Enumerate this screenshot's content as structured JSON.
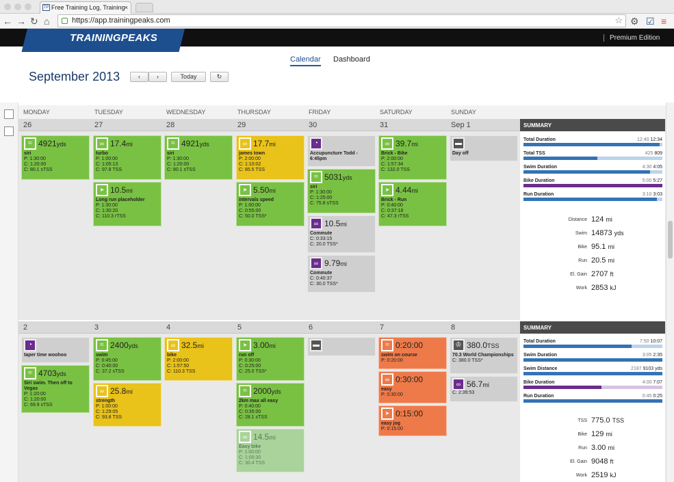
{
  "browser": {
    "tab_title": "Free Training Log, Training",
    "tab_close": "×",
    "url": "https://app.trainingpeaks.com",
    "favicon": "TP"
  },
  "brand": {
    "logo": "TRAININGPEAKS",
    "edition": "Premium Edition"
  },
  "nav": {
    "calendar": "Calendar",
    "dashboard": "Dashboard"
  },
  "header": {
    "month": "September",
    "year": "2013",
    "prev": "‹",
    "next": "›",
    "today": "Today",
    "refresh": "↻"
  },
  "days": [
    "MONDAY",
    "TUESDAY",
    "WEDNESDAY",
    "THURSDAY",
    "FRIDAY",
    "SATURDAY",
    "SUNDAY"
  ],
  "week1": {
    "dates": [
      "26",
      "27",
      "28",
      "29",
      "30",
      "31",
      "Sep 1"
    ],
    "cards": [
      {
        "v": "4921",
        "u": "yds",
        "t": "siri",
        "l": [
          "P: 1:30:00",
          "C: 1:20:00",
          "C: 80.1 sTSS"
        ]
      },
      {
        "v": "17.4",
        "u": "mi",
        "t": "turbo",
        "l": [
          "P: 1:00:00",
          "C: 1:05:13",
          "C: 97.8 TSS"
        ]
      },
      {
        "v": "10.5",
        "u": "mi",
        "t": "Long run placeholder",
        "l": [
          "P: 1:30:00",
          "C: 1:30:20",
          "C: 110.3 rTSS"
        ]
      },
      {
        "v": "4921",
        "u": "yds",
        "t": "siri",
        "l": [
          "P: 1:30:00",
          "C: 1:20:00",
          "C: 80.1 sTSS"
        ]
      },
      {
        "v": "17.7",
        "u": "mi",
        "t": "james town",
        "l": [
          "P: 2:00:00",
          "C: 1:10:02",
          "C: 85.5 TSS"
        ]
      },
      {
        "v": "5.50",
        "u": "mi",
        "t": "intervals speed",
        "l": [
          "P: 1:00:00",
          "C: 0:55:00",
          "C: 50.0 TSS*"
        ]
      },
      {
        "v": "",
        "u": "",
        "t": "Accupuncture Todd - 6:45pm",
        "l": []
      },
      {
        "v": "5031",
        "u": "yds",
        "t": "siri",
        "l": [
          "P: 1:30:00",
          "C: 1:25:00",
          "C: 75.8 sTSS"
        ]
      },
      {
        "v": "10.5",
        "u": "mi",
        "t": "Commute",
        "l": [
          "C: 0:33:15",
          "C: 20.0 TSS*"
        ]
      },
      {
        "v": "9.79",
        "u": "mi",
        "t": "Commute",
        "l": [
          "C: 0:40:37",
          "C: 30.0 TSS*"
        ]
      },
      {
        "v": "39.7",
        "u": "mi",
        "t": "Brick - Bike",
        "l": [
          "P: 2:00:00",
          "C: 1:57:34",
          "C: 132.0 TSS"
        ]
      },
      {
        "v": "4.44",
        "u": "mi",
        "t": "Brick - Run",
        "l": [
          "P: 0:40:00",
          "C: 0:37:18",
          "C: 47.3 rTSS"
        ]
      },
      {
        "v": "",
        "u": "",
        "t": "Day off",
        "l": []
      }
    ],
    "summary": {
      "title": "SUMMARY",
      "bars": [
        {
          "label": "Total Duration",
          "plan": "12:40",
          "actual": "12:34",
          "pct": 0.98
        },
        {
          "label": "Total TSS",
          "plan": "425",
          "actual": "809",
          "pct": 0.53
        },
        {
          "label": "Swim Duration",
          "plan": "4:30",
          "actual": "4:05",
          "pct": 0.91
        },
        {
          "label": "Bike Duration",
          "plan": "5:00",
          "actual": "5:27",
          "pct": 1.0
        },
        {
          "label": "Run Duration",
          "plan": "3:10",
          "actual": "3:03",
          "pct": 0.96
        }
      ],
      "stats": [
        {
          "k": "Distance",
          "v": "124",
          "u": "mi"
        },
        {
          "k": "Swim",
          "v": "14873",
          "u": "yds"
        },
        {
          "k": "Bike",
          "v": "95.1",
          "u": "mi"
        },
        {
          "k": "Run",
          "v": "20.5",
          "u": "mi"
        },
        {
          "k": "El. Gain",
          "v": "2707",
          "u": "ft"
        },
        {
          "k": "Work",
          "v": "2853",
          "u": "kJ"
        }
      ]
    }
  },
  "week2": {
    "dates": [
      "2",
      "3",
      "4",
      "5",
      "6",
      "7",
      "8"
    ],
    "cards": [
      {
        "v": "",
        "u": "",
        "t": "taper time woohoo",
        "l": []
      },
      {
        "v": "4703",
        "u": "yds",
        "t": "Siri swim. Then off to Vegas",
        "l": [
          "P: 1:20:00",
          "C: 1:20:00",
          "C: 69.9 sTSS"
        ]
      },
      {
        "v": "2400",
        "u": "yds",
        "t": "swim",
        "l": [
          "P: 0:45:00",
          "C: 0:40:00",
          "C: 37.2 sTSS"
        ]
      },
      {
        "v": "25.8",
        "u": "mi",
        "t": "strength",
        "l": [
          "P: 1:00:00",
          "C: 1:29:05",
          "C: 93.8 TSS"
        ]
      },
      {
        "v": "32.5",
        "u": "mi",
        "t": "bike",
        "l": [
          "P: 2:00:00",
          "C: 1:57:50",
          "C: 110.3 TSS"
        ]
      },
      {
        "v": "3.00",
        "u": "mi",
        "t": "run off",
        "l": [
          "P: 0:30:00",
          "C: 0:25:00",
          "C: 25.0 TSS*"
        ]
      },
      {
        "v": "2000",
        "u": "yds",
        "t": "2km max all easy",
        "l": [
          "P: 0:40:00",
          "C: 0:35:00",
          "C: 28.1 sTSS"
        ]
      },
      {
        "v": "14.5",
        "u": "mi",
        "t": "Easy bike",
        "l": [
          "P: 1:00:00",
          "C: 1:00:30",
          "C: 30.4 TSS"
        ]
      },
      {
        "v": "",
        "u": "",
        "t": "",
        "l": []
      },
      {
        "v": "0:20:00",
        "u": "",
        "t": "swim on course",
        "l": [
          "P: 0:20:00"
        ]
      },
      {
        "v": "0:30:00",
        "u": "",
        "t": "easy",
        "l": [
          "P: 0:30:00"
        ]
      },
      {
        "v": "0:15:00",
        "u": "",
        "t": "easy jog",
        "l": [
          "P: 0:15:00"
        ]
      },
      {
        "v": "380.0",
        "u": "TSS",
        "t": "70.3 World Championships",
        "l": [
          "C: 380.0 TSS*"
        ]
      },
      {
        "v": "56.7",
        "u": "mi",
        "t": "",
        "l": [
          "C: 2:39:53"
        ]
      }
    ],
    "summary": {
      "title": "SUMMARY",
      "bars": [
        {
          "label": "Total Duration",
          "plan": "7:50",
          "actual": "10:07",
          "pct": 0.78
        },
        {
          "label": "Swim Duration",
          "plan": "3:05",
          "actual": "2:35",
          "pct": 1.0
        },
        {
          "label": "Swim Distance",
          "plan": "2187",
          "actual": "9103 yds",
          "pct": 1.0
        },
        {
          "label": "Bike Duration",
          "plan": "4:00",
          "actual": "7:07",
          "pct": 0.56
        },
        {
          "label": "Run Duration",
          "plan": "0:45",
          "actual": "0:25",
          "pct": 1.0
        }
      ],
      "stats": [
        {
          "k": "TSS",
          "v": "775.0",
          "u": "TSS"
        },
        {
          "k": "Bike",
          "v": "129",
          "u": "mi"
        },
        {
          "k": "Run",
          "v": "3.00",
          "u": "mi"
        },
        {
          "k": "El. Gain",
          "v": "9048",
          "u": "ft"
        },
        {
          "k": "Work",
          "v": "2519",
          "u": "kJ"
        }
      ]
    }
  }
}
